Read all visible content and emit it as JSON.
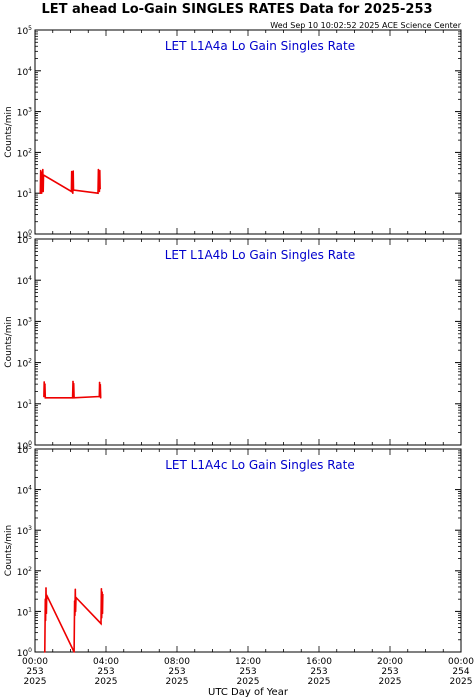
{
  "header": {
    "title": "LET ahead Lo-Gain SINGLES RATES Data for 2025-253",
    "timestamp": "Wed Sep 10 10:02:52 2025 ACE Science Center"
  },
  "colors": {
    "series": "#ee0000",
    "panel_title": "#0000cc",
    "axis": "#000000"
  },
  "chart_data": [
    {
      "type": "line",
      "title": "LET L1A4a Lo Gain Singles Rate",
      "ylabel": "Counts/min",
      "y_scale": "log",
      "ylim": [
        1,
        100000
      ],
      "xlim": [
        0,
        24
      ],
      "series": [
        {
          "values": [
            [
              0.3,
              10
            ],
            [
              0.32,
              36
            ],
            [
              0.34,
              12
            ],
            [
              0.36,
              33
            ],
            [
              0.38,
              10
            ],
            [
              0.4,
              30
            ],
            [
              0.42,
              14
            ],
            [
              0.44,
              38
            ],
            [
              0.46,
              11
            ],
            [
              0.48,
              28
            ],
            [
              2.05,
              11
            ],
            [
              2.07,
              34
            ],
            [
              2.09,
              13
            ],
            [
              2.11,
              30
            ],
            [
              2.13,
              10
            ],
            [
              2.15,
              35
            ],
            [
              2.17,
              12
            ],
            [
              3.55,
              10
            ],
            [
              3.57,
              38
            ],
            [
              3.59,
              12
            ],
            [
              3.61,
              32
            ],
            [
              3.63,
              11
            ],
            [
              3.65,
              36
            ],
            [
              3.67,
              13
            ]
          ]
        }
      ]
    },
    {
      "type": "line",
      "title": "LET L1A4b Lo Gain Singles Rate",
      "ylabel": "Counts/min",
      "y_scale": "log",
      "ylim": [
        1,
        100000
      ],
      "xlim": [
        0,
        24
      ],
      "series": [
        {
          "values": [
            [
              0.5,
              15
            ],
            [
              0.52,
              34
            ],
            [
              0.54,
              16
            ],
            [
              0.56,
              30
            ],
            [
              0.58,
              14
            ],
            [
              2.12,
              14
            ],
            [
              2.14,
              35
            ],
            [
              2.16,
              17
            ],
            [
              2.18,
              31
            ],
            [
              2.2,
              14
            ],
            [
              3.62,
              15
            ],
            [
              3.64,
              33
            ],
            [
              3.66,
              17
            ],
            [
              3.68,
              29
            ],
            [
              3.7,
              14
            ]
          ]
        }
      ]
    },
    {
      "type": "line",
      "title": "LET L1A4c Lo Gain Singles Rate",
      "ylabel": "Counts/min",
      "y_scale": "log",
      "ylim": [
        1,
        100000
      ],
      "xlim": [
        0,
        24
      ],
      "series": [
        {
          "values": [
            [
              0.55,
              1
            ],
            [
              0.58,
              20
            ],
            [
              0.6,
              6
            ],
            [
              0.62,
              38
            ],
            [
              0.64,
              9
            ],
            [
              0.66,
              25
            ],
            [
              2.2,
              1
            ],
            [
              2.23,
              18
            ],
            [
              2.25,
              8
            ],
            [
              2.27,
              35
            ],
            [
              2.29,
              10
            ],
            [
              2.31,
              22
            ],
            [
              3.72,
              5
            ],
            [
              3.74,
              36
            ],
            [
              3.76,
              7
            ],
            [
              3.78,
              30
            ],
            [
              3.8,
              9
            ],
            [
              3.82,
              26
            ]
          ]
        }
      ]
    }
  ],
  "y_ticks": [
    {
      "exp": "0"
    },
    {
      "exp": "1"
    },
    {
      "exp": "2"
    },
    {
      "exp": "3"
    },
    {
      "exp": "4"
    },
    {
      "exp": "5"
    }
  ],
  "x_axis": {
    "label": "UTC Day of Year",
    "ticks": [
      {
        "value": 0,
        "time": "00:00",
        "doy": "253",
        "year": "2025"
      },
      {
        "value": 4,
        "time": "04:00",
        "doy": "253",
        "year": "2025"
      },
      {
        "value": 8,
        "time": "08:00",
        "doy": "253",
        "year": "2025"
      },
      {
        "value": 12,
        "time": "12:00",
        "doy": "253",
        "year": "2025"
      },
      {
        "value": 16,
        "time": "16:00",
        "doy": "253",
        "year": "2025"
      },
      {
        "value": 20,
        "time": "20:00",
        "doy": "253",
        "year": "2025"
      },
      {
        "value": 24,
        "time": "00:00",
        "doy": "254",
        "year": "2025"
      }
    ]
  }
}
